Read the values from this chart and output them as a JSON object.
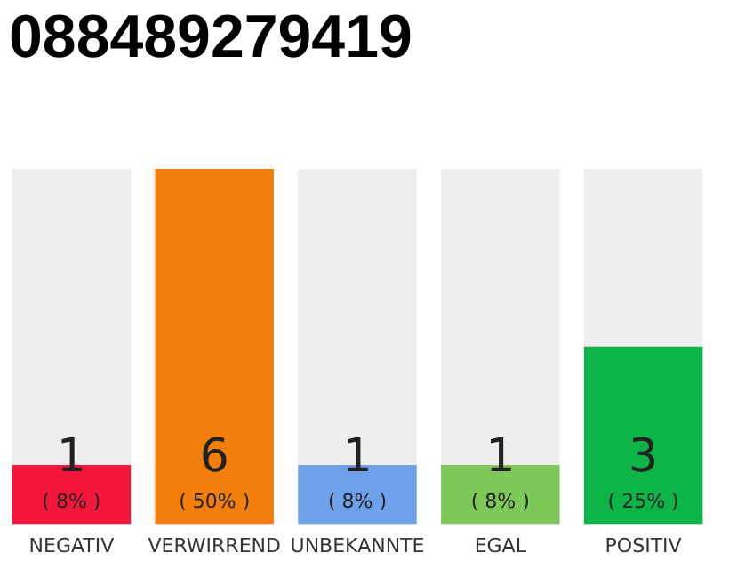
{
  "chart_data": {
    "type": "bar",
    "title": "088489279419",
    "categories": [
      "NEGATIV",
      "VERWIRREND",
      "UNBEKANNTE",
      "EGAL",
      "POSITIV"
    ],
    "values": [
      1,
      6,
      1,
      1,
      3
    ],
    "colors": [
      "#f5163b",
      "#f27f0c",
      "#6fa0ea",
      "#7ec85a",
      "#0db548"
    ],
    "ylim": [
      0,
      6
    ],
    "data_labels": true,
    "grid": false,
    "legend": false,
    "tick_labels": "x",
    "annotations": [
      "( 8% )",
      "( 50% )",
      "( 8% )",
      "( 8% )",
      "( 25% )"
    ]
  }
}
